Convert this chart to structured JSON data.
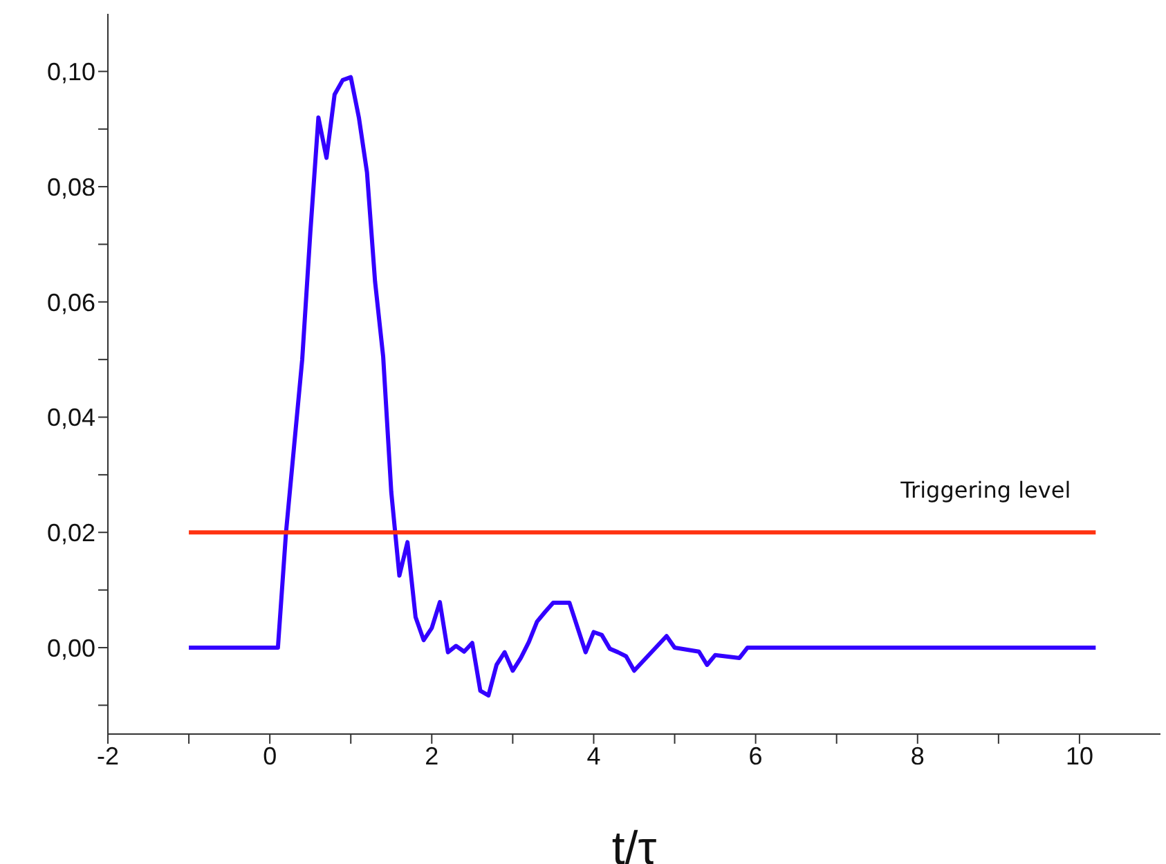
{
  "chart_data": {
    "type": "line",
    "xlabel": "t/τ",
    "xlim": [
      -2,
      11
    ],
    "ylim": [
      -0.015,
      0.11
    ],
    "xticks": [
      -2,
      {
        "value": -1,
        "label": null
      },
      0,
      {
        "value": 1,
        "label": null
      },
      2,
      {
        "value": 3,
        "label": null
      },
      4,
      {
        "value": 5,
        "label": null
      },
      6,
      {
        "value": 7,
        "label": null
      },
      8,
      {
        "value": 9,
        "label": null
      },
      10
    ],
    "yticks": [
      {
        "value": -0.01,
        "label": null
      },
      {
        "value": 0,
        "label": "0,00"
      },
      {
        "value": 0.01,
        "label": null
      },
      {
        "value": 0.02,
        "label": "0,02"
      },
      {
        "value": 0.03,
        "label": null
      },
      {
        "value": 0.04,
        "label": "0,04"
      },
      {
        "value": 0.05,
        "label": null
      },
      {
        "value": 0.06,
        "label": "0,06"
      },
      {
        "value": 0.07,
        "label": null
      },
      {
        "value": 0.08,
        "label": "0,08"
      },
      {
        "value": 0.09,
        "label": null
      },
      {
        "value": 0.1,
        "label": "0,10"
      }
    ],
    "grid": false,
    "legend": false,
    "marker": "none",
    "line_style": "solid",
    "series": [
      {
        "color": "#3300ff",
        "x": [
          -1,
          0.1,
          0.2,
          0.3,
          0.4,
          0.5,
          0.6,
          0.7,
          0.8,
          0.9,
          1.0,
          1.1,
          1.2,
          1.3,
          1.4,
          1.5,
          1.6,
          1.7,
          1.8,
          1.9,
          2.0,
          2.1,
          2.2,
          2.3,
          2.4,
          2.5,
          2.6,
          2.7,
          2.8,
          2.9,
          3.0,
          3.1,
          3.2,
          3.3,
          3.4,
          3.5,
          3.6,
          3.7,
          3.8,
          3.9,
          4.0,
          4.1,
          4.2,
          4.3,
          4.4,
          4.5,
          4.6,
          4.7,
          4.8,
          4.9,
          5.0,
          5.3,
          5.4,
          5.5,
          5.8,
          5.9,
          10.2
        ],
        "values": [
          0,
          0,
          0.02,
          0.035,
          0.05,
          0.072,
          0.092,
          0.085,
          0.096,
          0.0985,
          0.099,
          0.092,
          0.0825,
          0.0635,
          0.0505,
          0.027,
          0.0125,
          0.0183,
          0.0053,
          0.0013,
          0.0034,
          0.0079,
          -0.0008,
          0.0003,
          -0.0007,
          0.0008,
          -0.0075,
          -0.0083,
          -0.003,
          -0.0008,
          -0.004,
          -0.0018,
          0.001,
          0.0045,
          0.0062,
          0.0078,
          0.0078,
          0.0078,
          0.0035,
          -0.0008,
          0.0027,
          0.0022,
          -0.0002,
          -0.0008,
          -0.0015,
          -0.004,
          -0.0025,
          -0.001,
          0.0005,
          0.002,
          0,
          -0.0007,
          -0.003,
          -0.0013,
          -0.0018,
          0,
          0
        ]
      },
      {
        "name": "Triggering level",
        "color": "#ff3311",
        "x": [
          -1,
          10.2
        ],
        "values": [
          0.02,
          0.02
        ]
      }
    ]
  }
}
